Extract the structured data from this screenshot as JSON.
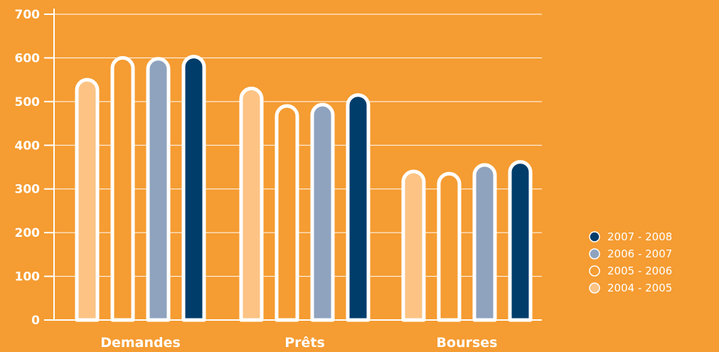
{
  "colors": {
    "background": "#f59c32",
    "grid": "#ffffff",
    "outline": "#ffffff"
  },
  "chart_data": {
    "type": "bar",
    "categories": [
      "Demandes",
      "Prêts",
      "Bourses"
    ],
    "series": [
      {
        "name": "2004 - 2005",
        "color": "#fcc384",
        "values": [
          550,
          530,
          340
        ]
      },
      {
        "name": "2005 - 2006",
        "color": "#f59c32",
        "values": [
          600,
          490,
          335
        ]
      },
      {
        "name": "2006 - 2007",
        "color": "#8fa3bf",
        "values": [
          598,
          493,
          355
        ]
      },
      {
        "name": "2007 - 2008",
        "color": "#003d6b",
        "values": [
          603,
          515,
          362
        ]
      }
    ],
    "legend_order": [
      "2007 - 2008",
      "2006 - 2007",
      "2005 - 2006",
      "2004 - 2005"
    ],
    "y_ticks": [
      0,
      100,
      200,
      300,
      400,
      500,
      600,
      700
    ],
    "ylim": [
      0,
      700
    ],
    "grid": true,
    "legend_position": "bottom-right",
    "title": "",
    "xlabel": "",
    "ylabel": ""
  }
}
